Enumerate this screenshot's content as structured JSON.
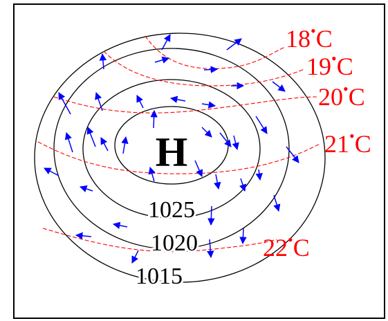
{
  "diagram": {
    "center_label": "H",
    "isobar_labels": [
      "1025",
      "1020",
      "1015"
    ],
    "isotherm_labels": [
      "18",
      "19",
      "20",
      "21",
      "22"
    ],
    "temperature_unit": "C",
    "colors": {
      "isobar": "#000000",
      "isotherm": "#ff0000",
      "wind_arrow": "#0000ff",
      "border": "#000000"
    }
  }
}
